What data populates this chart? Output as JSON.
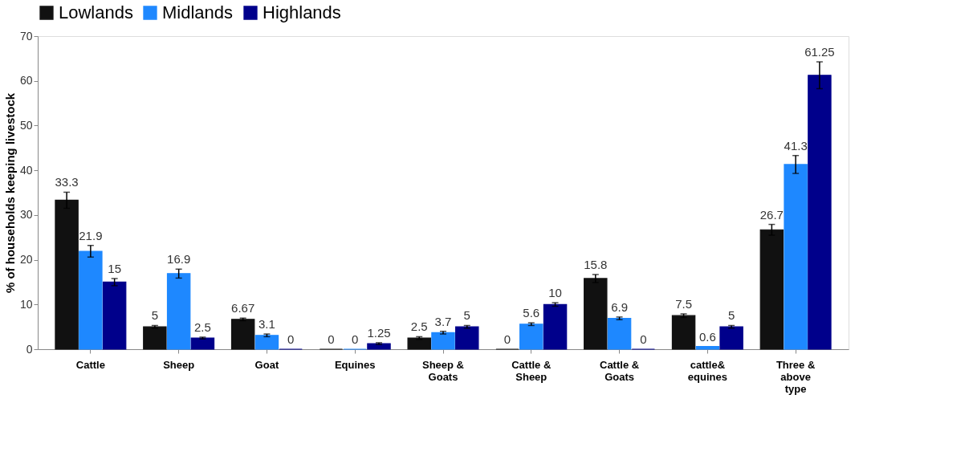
{
  "chart_data": {
    "type": "bar",
    "categories": [
      "Cattle",
      "Sheep",
      "Goat",
      "Equines",
      "Sheep & Goats",
      "Cattle & Sheep",
      "Cattle & Goats",
      "cattle& equines",
      "Three & above type"
    ],
    "ylabel": "% of households keeping livestock",
    "series": [
      {
        "name": "Lowlands",
        "color": "#111111",
        "values": [
          33.3,
          5,
          6.67,
          0,
          2.5,
          0,
          15.8,
          7.5,
          26.7
        ],
        "errors": [
          1.8,
          0.3,
          0.3,
          null,
          0.3,
          null,
          0.9,
          0.4,
          1.2
        ]
      },
      {
        "name": "Midlands",
        "color": "#1e88ff",
        "values": [
          21.9,
          16.9,
          3.1,
          0,
          3.7,
          5.6,
          6.9,
          0.6,
          41.3
        ],
        "errors": [
          1.3,
          1.0,
          0.3,
          null,
          0.3,
          0.3,
          0.3,
          null,
          2.0
        ]
      },
      {
        "name": "Highlands",
        "color": "#00008b",
        "values": [
          15,
          2.5,
          0,
          1.25,
          5,
          10,
          0,
          5,
          61.25
        ],
        "errors": [
          0.8,
          0.2,
          null,
          0.2,
          0.3,
          0.4,
          null,
          0.3,
          3.0
        ]
      }
    ],
    "ylim": [
      0,
      70
    ],
    "yticks": [
      0,
      10,
      20,
      30,
      40,
      50,
      60,
      70
    ],
    "data_labels": true,
    "legend": "top",
    "grid": false
  }
}
